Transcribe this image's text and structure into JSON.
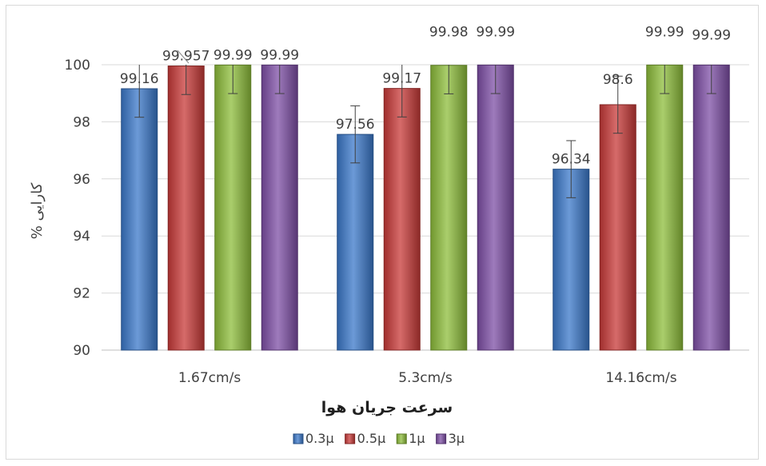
{
  "chart_data": {
    "type": "bar",
    "categories": [
      "1.67cm/s",
      "5.3cm/s",
      "14.16cm/s"
    ],
    "series": [
      {
        "name": "0.3µ",
        "values": [
          99.16,
          97.56,
          96.34
        ],
        "labels": [
          "99.16",
          "97.56",
          "96.34"
        ],
        "color": "#3b78c9",
        "error": 1
      },
      {
        "name": "0.5µ",
        "values": [
          99.957,
          99.17,
          98.6
        ],
        "labels": [
          "99.957",
          "99.17",
          "98.6"
        ],
        "color": "#c83a38",
        "error": 1
      },
      {
        "name": "1µ",
        "values": [
          99.99,
          99.98,
          99.99
        ],
        "labels": [
          "99.99",
          "99.98",
          "99.99"
        ],
        "color": "#8dbd3b",
        "error": 1
      },
      {
        "name": "3µ",
        "values": [
          99.99,
          99.99,
          99.99
        ],
        "labels": [
          "99.99",
          "99.99",
          "99.99"
        ],
        "color": "#7e4fa6",
        "error": 1
      }
    ],
    "xlabel": "سرعت جریان هوا",
    "ylabel": "% کارایی",
    "ylim": [
      90,
      100
    ],
    "yticks": [
      "90",
      "92",
      "94",
      "96",
      "98",
      "100"
    ],
    "grid": true,
    "legend_position": "bottom"
  }
}
